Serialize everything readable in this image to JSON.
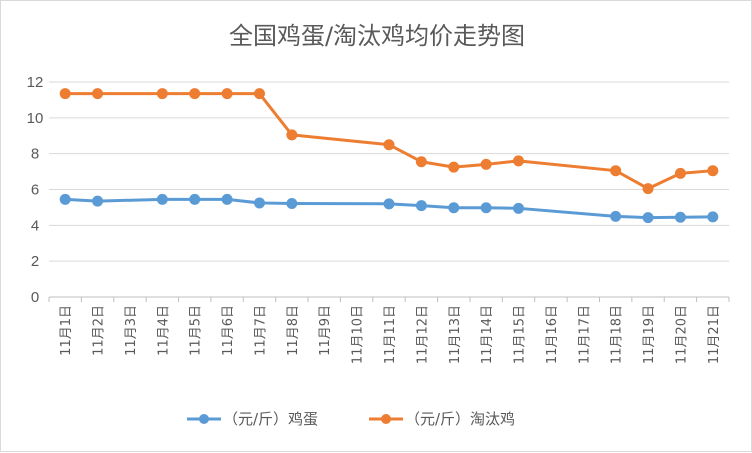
{
  "chart_data": {
    "type": "line",
    "title": "全国鸡蛋/淘汰鸡均价走势图",
    "xlabel": "",
    "ylabel": "",
    "ylim": [
      0,
      12
    ],
    "yticks": [
      0,
      2,
      4,
      6,
      8,
      10,
      12
    ],
    "grid": true,
    "legend_position": "bottom",
    "categories": [
      "11月1日",
      "11月2日",
      "11月3日",
      "11月4日",
      "11月5日",
      "11月6日",
      "11月7日",
      "11月8日",
      "11月9日",
      "11月10日",
      "11月11日",
      "11月12日",
      "11月13日",
      "11月14日",
      "11月15日",
      "11月16日",
      "11月17日",
      "11月18日",
      "11月19日",
      "11月20日",
      "11月21日"
    ],
    "series": [
      {
        "name": "（元/斤）鸡蛋",
        "color": "#5b9bd5",
        "values": [
          5.45,
          5.35,
          null,
          5.45,
          5.45,
          5.45,
          5.25,
          5.22,
          null,
          null,
          5.2,
          5.1,
          4.98,
          4.98,
          4.95,
          null,
          null,
          4.5,
          4.43,
          4.45,
          4.47
        ]
      },
      {
        "name": "（元/斤）淘汰鸡",
        "color": "#ed7d31",
        "values": [
          11.35,
          11.35,
          null,
          11.35,
          11.35,
          11.35,
          11.35,
          9.05,
          null,
          null,
          8.5,
          7.55,
          7.25,
          7.4,
          7.6,
          null,
          null,
          7.05,
          6.05,
          6.9,
          7.05
        ]
      }
    ]
  }
}
